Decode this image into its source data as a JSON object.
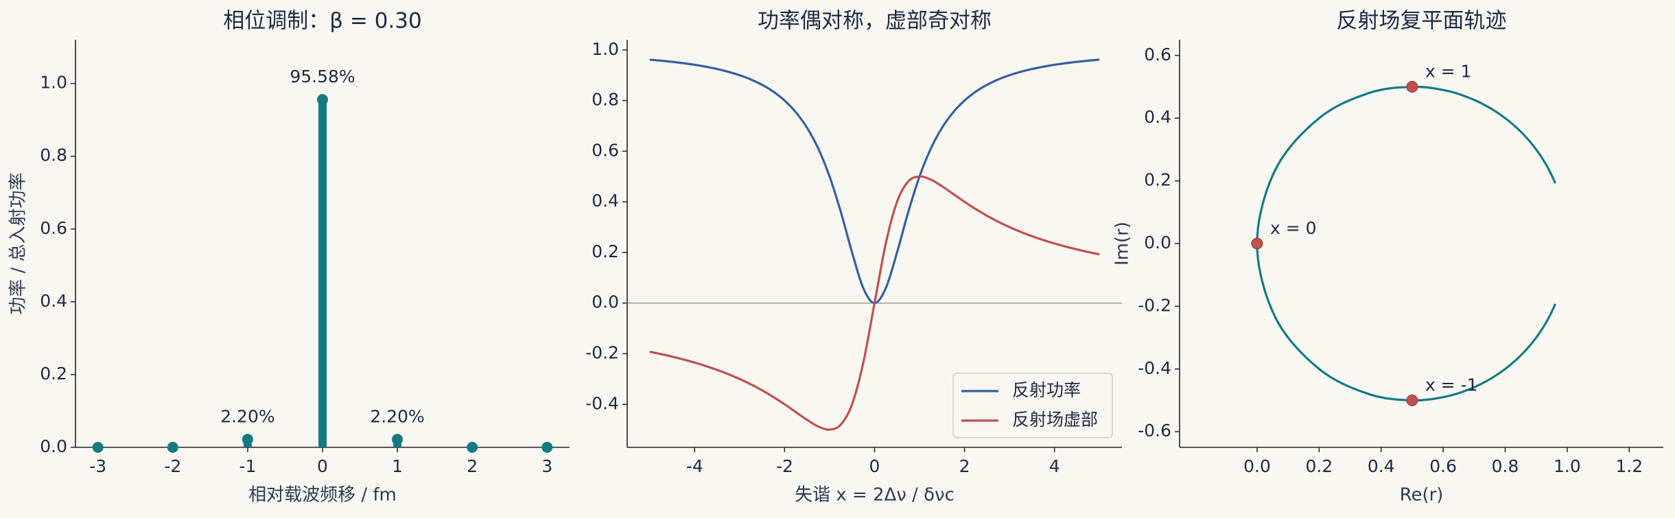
{
  "chart_data": [
    {
      "type": "stem",
      "title": "相位调制：β = 0.30",
      "xlabel": "相对载波频移 / fm",
      "ylabel": "功率 / 总入射功率",
      "x": [
        -3,
        -2,
        -1,
        0,
        1,
        2,
        3
      ],
      "values": [
        0,
        0,
        0.022,
        0.9558,
        0.022,
        0,
        0
      ],
      "value_labels": [
        null,
        null,
        "2.20%",
        "95.58%",
        "2.20%",
        null,
        null
      ],
      "color": "#137b84",
      "xlim": [
        -3.3,
        3.3
      ],
      "xticks": [
        -3,
        -2,
        -1,
        0,
        1,
        2,
        3
      ],
      "ylim": [
        0,
        1.12
      ],
      "yticks": [
        {
          "value": 0,
          "label": "0.0"
        },
        0.2,
        0.4,
        0.6,
        0.8,
        {
          "value": 1,
          "label": "1.0"
        }
      ]
    },
    {
      "type": "line",
      "title": "功率偶对称，虚部奇对称",
      "xlabel": "失谐 x = 2Δν / δνc",
      "x": [
        -5,
        -4.75,
        -4.5,
        -4.25,
        -4,
        -3.75,
        -3.5,
        -3.25,
        -3,
        -2.75,
        -2.5,
        -2.25,
        -2,
        -1.75,
        -1.5,
        -1.25,
        -1,
        -0.75,
        -0.5,
        -0.25,
        0,
        0.25,
        0.5,
        0.75,
        1,
        1.25,
        1.5,
        1.75,
        2,
        2.25,
        2.5,
        2.75,
        3,
        3.25,
        3.5,
        3.75,
        4,
        4.25,
        4.5,
        4.75,
        5
      ],
      "series": [
        {
          "name": "反射功率",
          "color": "#3560a0",
          "values": [
            0.9615,
            0.9576,
            0.9529,
            0.9475,
            0.9412,
            0.9336,
            0.9245,
            0.9135,
            0.9,
            0.8832,
            0.8621,
            0.8351,
            0.8,
            0.7538,
            0.6923,
            0.6098,
            0.5,
            0.36,
            0.2,
            0.0588,
            0,
            0.0588,
            0.2,
            0.36,
            0.5,
            0.6098,
            0.6923,
            0.7538,
            0.8,
            0.8351,
            0.8621,
            0.8832,
            0.9,
            0.9135,
            0.9245,
            0.9336,
            0.9412,
            0.9475,
            0.9529,
            0.9576,
            0.9615
          ]
        },
        {
          "name": "反射场虚部",
          "color": "#c0504d",
          "values": [
            -0.1923,
            -0.2016,
            -0.2118,
            -0.223,
            -0.2353,
            -0.249,
            -0.2642,
            -0.2811,
            -0.3,
            -0.3212,
            -0.3448,
            -0.3711,
            -0.4,
            -0.4308,
            -0.4615,
            -0.4878,
            -0.5,
            -0.48,
            -0.4,
            -0.2353,
            0,
            0.2353,
            0.4,
            0.48,
            0.5,
            0.4878,
            0.4615,
            0.4308,
            0.4,
            0.3711,
            0.3448,
            0.3212,
            0.3,
            0.2811,
            0.2642,
            0.249,
            0.2353,
            0.223,
            0.2118,
            0.2016,
            0.1923
          ]
        }
      ],
      "hline": 0,
      "legend": "lower right",
      "xlim": [
        -5.5,
        5.5
      ],
      "xticks": [
        -4,
        -2,
        0,
        2,
        4
      ],
      "ylim": [
        -0.57,
        1.04
      ],
      "yticks": [
        -0.4,
        -0.2,
        {
          "value": 0,
          "label": "0.0"
        },
        0.2,
        0.4,
        0.6,
        0.8,
        {
          "value": 1,
          "label": "1.0"
        }
      ]
    },
    {
      "type": "parametric",
      "title": "反射场复平面轨迹",
      "xlabel": "Re(r)",
      "ylabel": "Im(r)",
      "x": [
        0.9615,
        0.9576,
        0.9529,
        0.9475,
        0.9412,
        0.9336,
        0.9245,
        0.9135,
        0.9,
        0.8832,
        0.8621,
        0.8351,
        0.8,
        0.7538,
        0.6923,
        0.6098,
        0.5,
        0.36,
        0.2,
        0.0588,
        0,
        0.0588,
        0.2,
        0.36,
        0.5,
        0.6098,
        0.6923,
        0.7538,
        0.8,
        0.8351,
        0.8621,
        0.8832,
        0.9,
        0.9135,
        0.9245,
        0.9336,
        0.9412,
        0.9475,
        0.9529,
        0.9576,
        0.9615
      ],
      "series": [
        {
          "color": "#137b84",
          "values": [
            -0.1923,
            -0.2016,
            -0.2118,
            -0.223,
            -0.2353,
            -0.249,
            -0.2642,
            -0.2811,
            -0.3,
            -0.3212,
            -0.3448,
            -0.3711,
            -0.4,
            -0.4308,
            -0.4615,
            -0.4878,
            -0.5,
            -0.48,
            -0.4,
            -0.2353,
            0,
            0.2353,
            0.4,
            0.48,
            0.5,
            0.4878,
            0.4615,
            0.4308,
            0.4,
            0.3711,
            0.3448,
            0.3212,
            0.3,
            0.2811,
            0.2642,
            0.249,
            0.2353,
            0.223,
            0.2118,
            0.2016,
            0.1923
          ]
        }
      ],
      "points": {
        "color": "#c0504d",
        "x": [
          0.5,
          0,
          0.5
        ],
        "y": [
          0.5,
          0,
          -0.5
        ],
        "labels": [
          "x = 1",
          "x = 0",
          "x = -1"
        ]
      },
      "xlim": [
        -0.25,
        1.31
      ],
      "xticks": [
        {
          "value": 0,
          "label": "0.0"
        },
        0.2,
        0.4,
        0.6,
        0.8,
        {
          "value": 1,
          "label": "1.0"
        },
        1.2
      ],
      "ylim": [
        -0.65,
        0.65
      ],
      "yticks": [
        -0.6,
        -0.4,
        -0.2,
        {
          "value": 0,
          "label": "0.0"
        },
        0.2,
        0.4,
        0.6
      ]
    }
  ]
}
